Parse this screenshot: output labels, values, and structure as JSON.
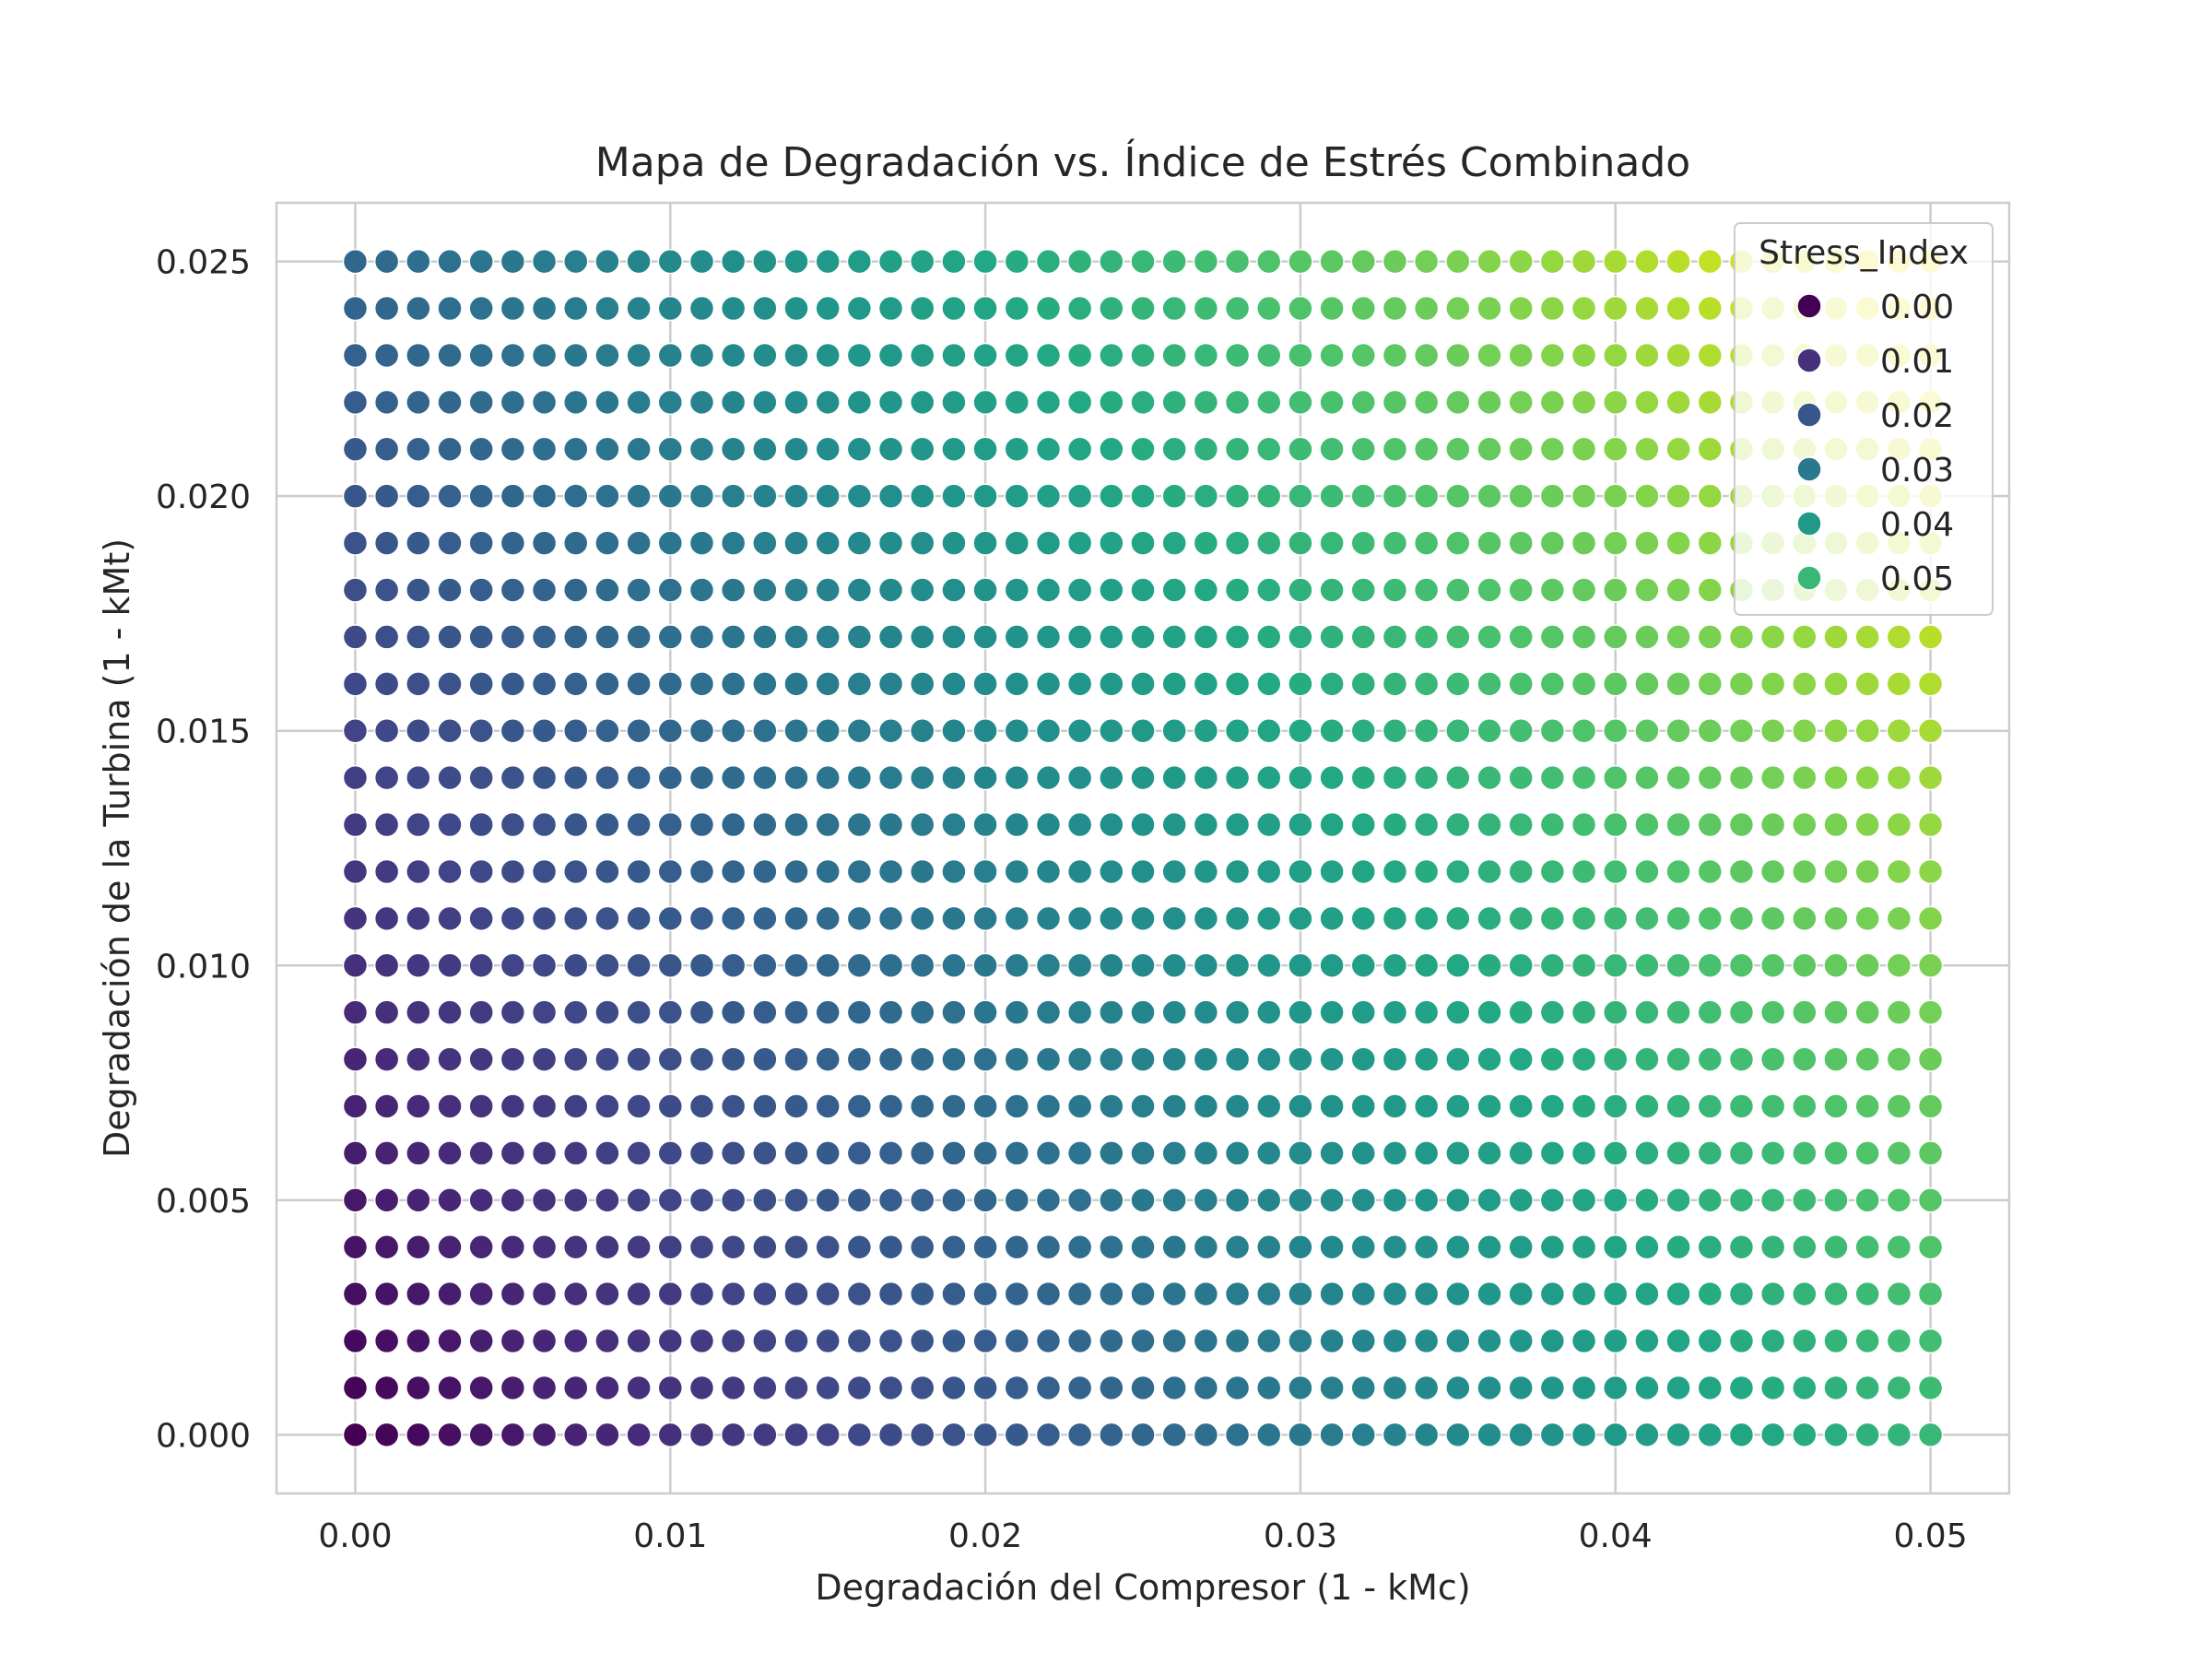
{
  "chart_data": {
    "type": "scatter",
    "title": "Mapa de Degradación vs. Índice de Estrés Combinado",
    "xlabel": "Degradación del Compresor (1 - kMc)",
    "ylabel": "Degradación de la Turbina (1 - kMt)",
    "xlim": [
      -0.0025,
      0.0525
    ],
    "ylim": [
      -0.00125,
      0.02625
    ],
    "xticks": [
      0.0,
      0.01,
      0.02,
      0.03,
      0.04,
      0.05
    ],
    "xtick_labels": [
      "0.00",
      "0.01",
      "0.02",
      "0.03",
      "0.04",
      "0.05"
    ],
    "yticks": [
      0.0,
      0.005,
      0.01,
      0.015,
      0.02,
      0.025
    ],
    "ytick_labels": [
      "0.000",
      "0.005",
      "0.010",
      "0.015",
      "0.020",
      "0.025"
    ],
    "grid": true,
    "colormap": "viridis",
    "color_variable": "Stress_Index",
    "color_formula": "Stress_Index = x + y",
    "color_range": [
      0.0,
      0.075
    ],
    "x_grid": {
      "start": 0.0,
      "stop": 0.05,
      "step": 0.001
    },
    "y_grid": {
      "start": 0.0,
      "stop": 0.025,
      "step": 0.001
    },
    "legend": {
      "title": "Stress_Index",
      "placement": "top-right",
      "entries": [
        {
          "label": "0.00",
          "value": 0.0
        },
        {
          "label": "0.01",
          "value": 0.01
        },
        {
          "label": "0.02",
          "value": 0.02
        },
        {
          "label": "0.03",
          "value": 0.03
        },
        {
          "label": "0.04",
          "value": 0.04
        },
        {
          "label": "0.05",
          "value": 0.05
        }
      ]
    },
    "colors": {
      "background": "#ffffff",
      "axes_edge": "#cccccc",
      "grid": "#cccccc",
      "text": "#262626",
      "legend_face": "#ffffff",
      "legend_edge": "#cccccc"
    }
  }
}
